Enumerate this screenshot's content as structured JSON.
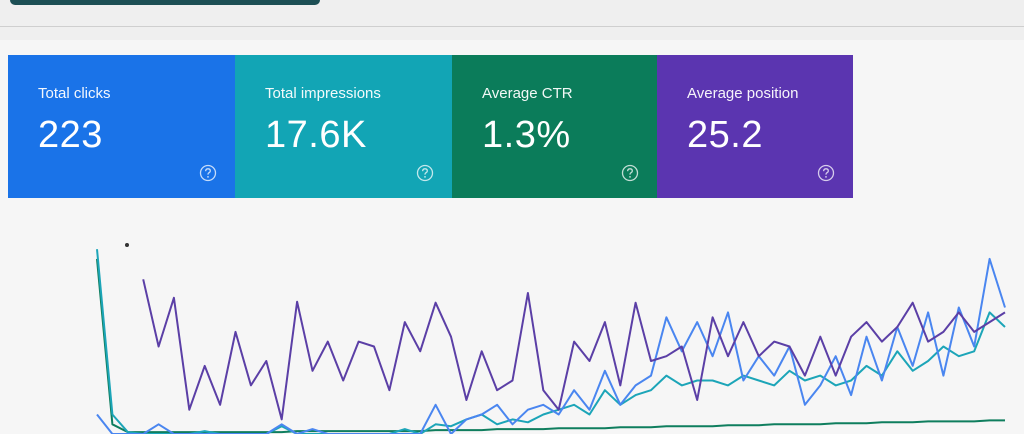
{
  "cards": [
    {
      "label": "Total clicks",
      "value": "223",
      "color": "#1a73e8"
    },
    {
      "label": "Total impressions",
      "value": "17.6K",
      "color": "#12a5b5"
    },
    {
      "label": "Average CTR",
      "value": "1.3%",
      "color": "#0b7c5a"
    },
    {
      "label": "Average position",
      "value": "25.2",
      "color": "#5b35b0"
    }
  ],
  "chart": {
    "type": "line",
    "ylim": [
      0,
      220
    ],
    "series": [
      {
        "color": "#0f7e5e",
        "values": [
          180,
          10,
          2,
          2,
          2,
          2,
          2,
          2,
          2,
          2,
          2,
          2,
          2,
          3,
          3,
          3,
          3,
          3,
          3,
          3,
          3,
          3,
          4,
          4,
          4,
          4,
          5,
          5,
          5,
          5,
          6,
          6,
          6,
          6,
          7,
          7,
          7,
          8,
          8,
          8,
          8,
          9,
          9,
          9,
          10,
          10,
          10,
          10,
          11,
          11,
          11,
          12,
          12,
          12,
          13,
          13,
          13,
          13,
          14,
          14
        ]
      },
      {
        "color": "#1ca5b8",
        "values": [
          190,
          20,
          2,
          0,
          0,
          0,
          0,
          3,
          0,
          0,
          0,
          0,
          8,
          0,
          0,
          0,
          0,
          0,
          0,
          0,
          5,
          0,
          10,
          8,
          15,
          20,
          10,
          15,
          12,
          20,
          25,
          30,
          20,
          45,
          30,
          40,
          45,
          60,
          50,
          55,
          55,
          50,
          60,
          55,
          50,
          65,
          55,
          60,
          50,
          55,
          70,
          60,
          85,
          65,
          75,
          90,
          80,
          85,
          125,
          110
        ]
      },
      {
        "color": "#4a86f0",
        "values": [
          20,
          0,
          0,
          0,
          10,
          0,
          0,
          0,
          0,
          0,
          0,
          0,
          10,
          0,
          5,
          0,
          0,
          0,
          0,
          0,
          0,
          0,
          30,
          0,
          15,
          20,
          30,
          10,
          25,
          30,
          20,
          45,
          25,
          65,
          30,
          50,
          60,
          120,
          85,
          115,
          80,
          125,
          55,
          80,
          60,
          90,
          30,
          50,
          80,
          40,
          100,
          55,
          110,
          70,
          125,
          60,
          130,
          90,
          180,
          130
        ]
      },
      {
        "color": "#5b3fa6",
        "values": [
          null,
          null,
          null,
          159,
          90,
          140,
          25,
          70,
          30,
          105,
          50,
          75,
          15,
          136,
          65,
          95,
          55,
          95,
          90,
          45,
          115,
          85,
          135,
          100,
          35,
          85,
          45,
          55,
          145,
          45,
          25,
          95,
          75,
          115,
          50,
          135,
          75,
          80,
          90,
          35,
          120,
          80,
          115,
          80,
          95,
          90,
          60,
          100,
          60,
          100,
          115,
          95,
          110,
          135,
          95,
          105,
          125,
          105,
          115,
          125
        ]
      }
    ]
  }
}
